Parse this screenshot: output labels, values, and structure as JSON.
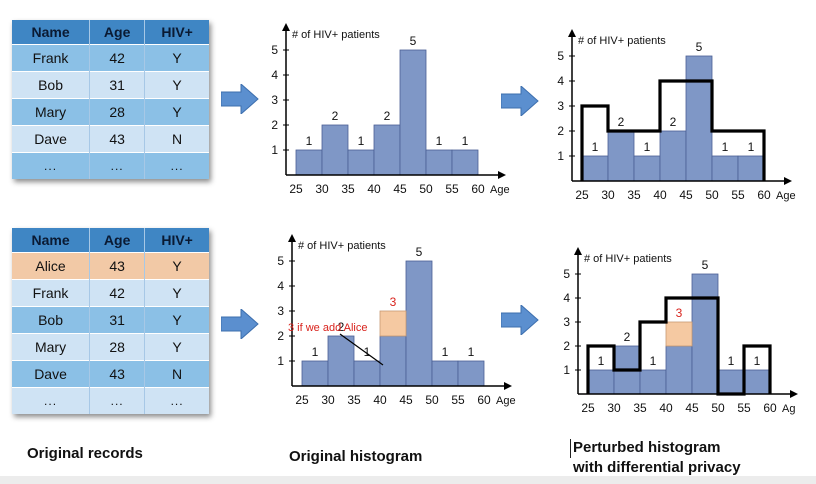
{
  "top_table": {
    "headers": [
      "Name",
      "Age",
      "HIV+"
    ],
    "rows": [
      [
        "Frank",
        "42",
        "Y"
      ],
      [
        "Bob",
        "31",
        "Y"
      ],
      [
        "Mary",
        "28",
        "Y"
      ],
      [
        "Dave",
        "43",
        "N"
      ],
      [
        "...",
        "...",
        "..."
      ]
    ]
  },
  "bottom_table": {
    "headers": [
      "Name",
      "Age",
      "HIV+"
    ],
    "rows": [
      [
        "Alice",
        "43",
        "Y"
      ],
      [
        "Frank",
        "42",
        "Y"
      ],
      [
        "Bob",
        "31",
        "Y"
      ],
      [
        "Mary",
        "28",
        "Y"
      ],
      [
        "Dave",
        "43",
        "N"
      ],
      [
        "...",
        "...",
        "..."
      ]
    ]
  },
  "captions": {
    "records": "Original records",
    "original": "Original histogram",
    "perturbed_line1": "Perturbed histogram",
    "perturbed_line2": "with differential privacy"
  },
  "colors": {
    "bar_fill": "#7f97c6",
    "bar_stroke": "#4a5f93",
    "alice_fill": "#f5c9a2",
    "arrow": "#5b8fcf",
    "annotation": "#d9231d",
    "header": "#3f86c4"
  },
  "chart_data": [
    {
      "id": "original-top",
      "type": "bar",
      "ylabel": "# of HIV+ patients",
      "xlabel": "Age",
      "x_ticks": [
        "25",
        "30",
        "35",
        "40",
        "45",
        "50",
        "55",
        "60"
      ],
      "y_ticks": [
        "1",
        "2",
        "3",
        "4",
        "5"
      ],
      "ylim": [
        0,
        5
      ],
      "values": [
        1,
        2,
        1,
        2,
        5,
        1,
        1
      ],
      "labels": [
        "1",
        "2",
        "1",
        "2",
        "5",
        "1",
        "1"
      ]
    },
    {
      "id": "perturbed-top",
      "type": "bar",
      "ylabel": "# of HIV+ patients",
      "xlabel": "Age",
      "x_ticks": [
        "25",
        "30",
        "35",
        "40",
        "45",
        "50",
        "55",
        "60"
      ],
      "y_ticks": [
        "1",
        "2",
        "3",
        "4",
        "5"
      ],
      "ylim": [
        0,
        5
      ],
      "values": [
        1,
        2,
        1,
        2,
        5,
        1,
        1
      ],
      "labels": [
        "1",
        "2",
        "1",
        "2",
        "5",
        "1",
        "1"
      ],
      "perturbed": [
        3,
        2,
        2,
        4,
        4,
        2,
        2
      ]
    },
    {
      "id": "original-bottom",
      "type": "bar",
      "ylabel": "# of HIV+ patients",
      "xlabel": "Age",
      "x_ticks": [
        "25",
        "30",
        "35",
        "40",
        "45",
        "50",
        "55",
        "60"
      ],
      "y_ticks": [
        "1",
        "2",
        "3",
        "4",
        "5"
      ],
      "ylim": [
        0,
        5
      ],
      "values": [
        1,
        2,
        1,
        2,
        5,
        1,
        1
      ],
      "labels": [
        "1",
        "2",
        "1",
        "",
        "5",
        "1",
        "1"
      ],
      "added": {
        "bin": 3,
        "value": 3,
        "label": "3"
      },
      "annotation": "3 if we add Alice"
    },
    {
      "id": "perturbed-bottom",
      "type": "bar",
      "ylabel": "# of HIV+ patients",
      "xlabel": "Ag",
      "x_ticks": [
        "25",
        "30",
        "35",
        "40",
        "45",
        "50",
        "55",
        "60"
      ],
      "y_ticks": [
        "1",
        "2",
        "3",
        "4",
        "5"
      ],
      "ylim": [
        0,
        5
      ],
      "values": [
        1,
        2,
        1,
        2,
        5,
        1,
        1
      ],
      "labels": [
        "1",
        "2",
        "1",
        "",
        "5",
        "1",
        "1"
      ],
      "added": {
        "bin": 3,
        "value": 3,
        "label": "3"
      },
      "perturbed": [
        2,
        1,
        3,
        4,
        4,
        0,
        2
      ]
    }
  ]
}
